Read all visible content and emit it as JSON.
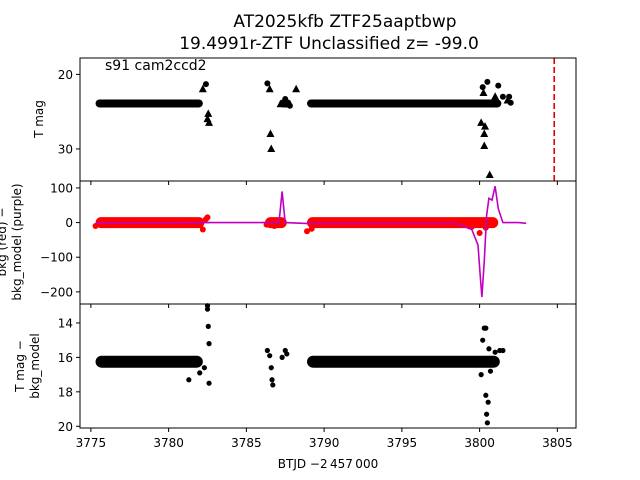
{
  "figure": {
    "title_line1": "AT2025kfb  ZTF25aaptbwp",
    "title_line2": "19.4991r-ZTF Unclassified z= -99.0",
    "xlabel": "BTJD −2 457 000",
    "x_ticks": [
      3775,
      3780,
      3785,
      3790,
      3795,
      3800,
      3805
    ],
    "xlim": [
      3774.3,
      3806.2
    ]
  },
  "chart_data": [
    {
      "type": "scatter",
      "panel": "top",
      "annotation": "s91 cam2ccd2",
      "ylabel": "T mag",
      "ylim": [
        17.8,
        34.3
      ],
      "y_inverted": true,
      "y_ticks": [
        20,
        30
      ],
      "marker": "circle+triangle",
      "color": "#000000",
      "band_value": 23.9,
      "band_segments": [
        [
          3775.3,
          3782.2
        ],
        [
          3787.1,
          3787.9
        ],
        [
          3788.9,
          3801.4
        ]
      ],
      "points": [
        [
          3782.2,
          22.0
        ],
        [
          3782.4,
          21.3
        ],
        [
          3782.5,
          26.0
        ],
        [
          3782.55,
          25.3
        ],
        [
          3782.6,
          26.5
        ],
        [
          3786.35,
          21.2
        ],
        [
          3786.5,
          22.0
        ],
        [
          3786.55,
          28.0
        ],
        [
          3786.6,
          30.0
        ],
        [
          3787.2,
          24.0
        ],
        [
          3787.5,
          23.3
        ],
        [
          3787.8,
          24.2
        ],
        [
          3788.2,
          22.0
        ],
        [
          3800.1,
          26.5
        ],
        [
          3800.2,
          21.7
        ],
        [
          3800.25,
          22.5
        ],
        [
          3800.3,
          28.0
        ],
        [
          3800.3,
          29.6
        ],
        [
          3800.35,
          27.0
        ],
        [
          3800.5,
          21.0
        ],
        [
          3800.65,
          33.5
        ],
        [
          3801.0,
          23.0
        ],
        [
          3801.2,
          21.5
        ],
        [
          3801.5,
          23.0
        ],
        [
          3801.8,
          23.5
        ],
        [
          3801.9,
          23.0
        ],
        [
          3802.0,
          23.8
        ]
      ],
      "reference_line": {
        "x": 3804.8,
        "color": "#e00000",
        "style": "dashed"
      }
    },
    {
      "type": "line",
      "panel": "middle",
      "ylabel_lines": [
        "bkg (red) −",
        "bkg_model (purple)"
      ],
      "ylim": [
        -235,
        120
      ],
      "y_ticks": [
        100,
        0,
        -100,
        -200
      ],
      "series": [
        {
          "name": "bkg",
          "color": "#ff0000",
          "kind": "points",
          "band_value": 0,
          "band_segments": [
            [
              3775.3,
              3782.3
            ],
            [
              3786.2,
              3787.6
            ],
            [
              3788.9,
              3801.2
            ]
          ],
          "points": [
            [
              3775.3,
              -10
            ],
            [
              3777.0,
              -5
            ],
            [
              3779.0,
              4
            ],
            [
              3781.0,
              -7
            ],
            [
              3782.2,
              -20
            ],
            [
              3782.4,
              10
            ],
            [
              3782.5,
              15
            ],
            [
              3786.3,
              -6
            ],
            [
              3786.8,
              -10
            ],
            [
              3788.9,
              -25
            ],
            [
              3789.2,
              -18
            ],
            [
              3792.0,
              5
            ],
            [
              3795.0,
              4
            ],
            [
              3798.0,
              -5
            ],
            [
              3799.5,
              -12
            ],
            [
              3800.0,
              -30
            ],
            [
              3800.4,
              -15
            ]
          ]
        },
        {
          "name": "bkg_model",
          "color": "#c000c0",
          "kind": "line",
          "points": [
            [
              3775.3,
              -2
            ],
            [
              3782.8,
              0
            ],
            [
              3786.0,
              0
            ],
            [
              3787.1,
              0
            ],
            [
              3787.3,
              90
            ],
            [
              3787.5,
              0
            ],
            [
              3789.0,
              -3
            ],
            [
              3798.5,
              -3
            ],
            [
              3799.5,
              -20
            ],
            [
              3799.9,
              -65
            ],
            [
              3800.05,
              -160
            ],
            [
              3800.15,
              -215
            ],
            [
              3800.3,
              -110
            ],
            [
              3800.45,
              20
            ],
            [
              3800.6,
              70
            ],
            [
              3800.8,
              65
            ],
            [
              3801.0,
              105
            ],
            [
              3801.2,
              40
            ],
            [
              3801.5,
              0
            ],
            [
              3802.5,
              0
            ],
            [
              3803.0,
              -2
            ]
          ]
        }
      ]
    },
    {
      "type": "scatter",
      "panel": "bottom",
      "ylabel_lines": [
        "T mag −",
        "bkg_model"
      ],
      "ylim": [
        20.1,
        12.9
      ],
      "y_inverted": true,
      "y_ticks": [
        14,
        16,
        18,
        20
      ],
      "color": "#000000",
      "band_value": 16.25,
      "band_segments": [
        [
          3775.3,
          3782.2
        ],
        [
          3788.9,
          3801.3
        ]
      ],
      "points": [
        [
          3781.3,
          17.3
        ],
        [
          3782.0,
          16.9
        ],
        [
          3782.3,
          16.6
        ],
        [
          3782.5,
          13.0
        ],
        [
          3782.5,
          13.2
        ],
        [
          3782.55,
          14.2
        ],
        [
          3782.6,
          15.2
        ],
        [
          3782.6,
          17.5
        ],
        [
          3786.35,
          15.6
        ],
        [
          3786.5,
          15.9
        ],
        [
          3786.6,
          16.6
        ],
        [
          3786.65,
          17.3
        ],
        [
          3786.7,
          17.6
        ],
        [
          3787.3,
          16.0
        ],
        [
          3787.5,
          15.6
        ],
        [
          3787.6,
          15.8
        ],
        [
          3800.1,
          17.0
        ],
        [
          3800.2,
          15.0
        ],
        [
          3800.3,
          14.3
        ],
        [
          3800.4,
          14.3
        ],
        [
          3800.4,
          18.2
        ],
        [
          3800.45,
          19.3
        ],
        [
          3800.5,
          19.8
        ],
        [
          3800.55,
          18.6
        ],
        [
          3800.6,
          15.5
        ],
        [
          3800.7,
          16.8
        ],
        [
          3801.0,
          15.7
        ],
        [
          3801.3,
          15.6
        ],
        [
          3801.5,
          15.6
        ]
      ]
    }
  ]
}
